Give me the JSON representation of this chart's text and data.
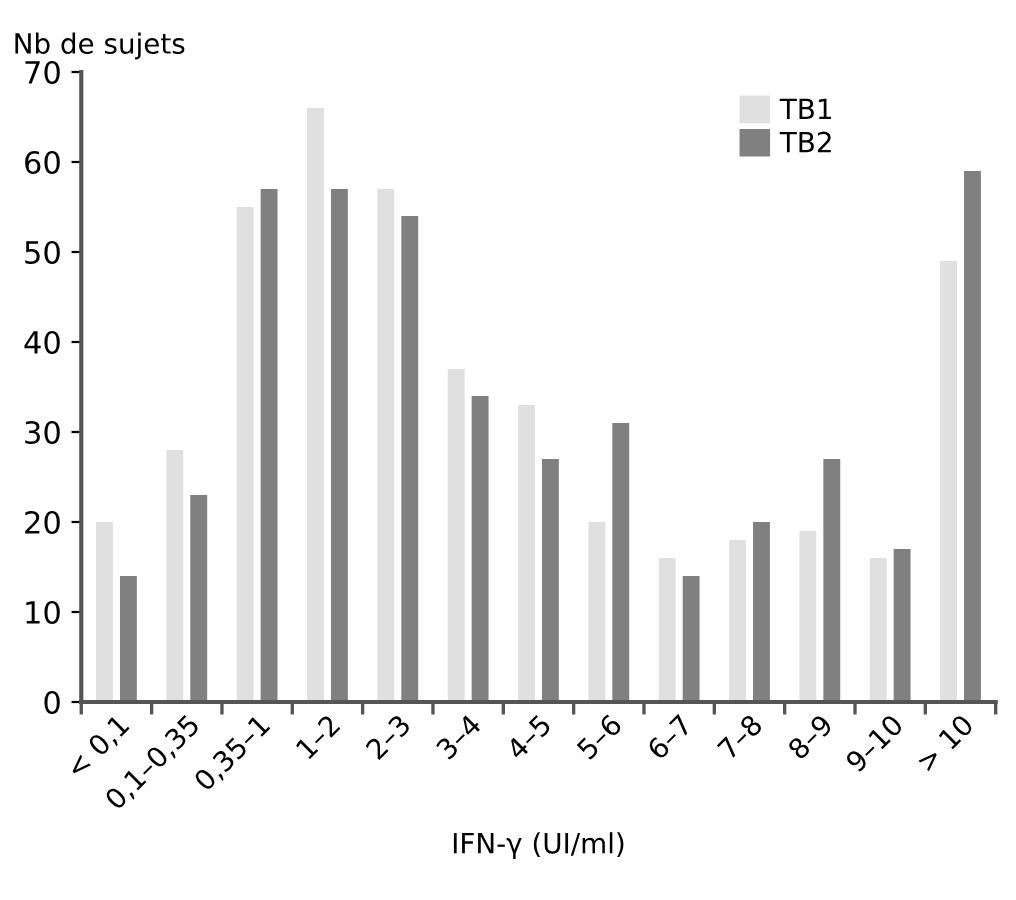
{
  "chart_data": {
    "type": "bar",
    "ylabel": "Nb de sujets",
    "xlabel": "IFN-γ (UI/ml)",
    "categories": [
      "< 0,1",
      "0,1–0,35",
      "0,35–1",
      "1–2",
      "2–3",
      "3–4",
      "4–5",
      "5–6",
      "6–7",
      "7–8",
      "8–9",
      "9–10",
      "> 10"
    ],
    "series": [
      {
        "name": "TB1",
        "color": "#e0e0e0",
        "values": [
          20,
          28,
          55,
          66,
          57,
          37,
          33,
          20,
          16,
          18,
          19,
          16,
          49
        ]
      },
      {
        "name": "TB2",
        "color": "#808080",
        "values": [
          14,
          23,
          57,
          57,
          54,
          34,
          27,
          31,
          14,
          20,
          27,
          17,
          59
        ]
      }
    ],
    "ylim": [
      0,
      70
    ],
    "yticks": [
      0,
      10,
      20,
      30,
      40,
      50,
      60,
      70
    ],
    "grid": false,
    "legend": "top right"
  }
}
